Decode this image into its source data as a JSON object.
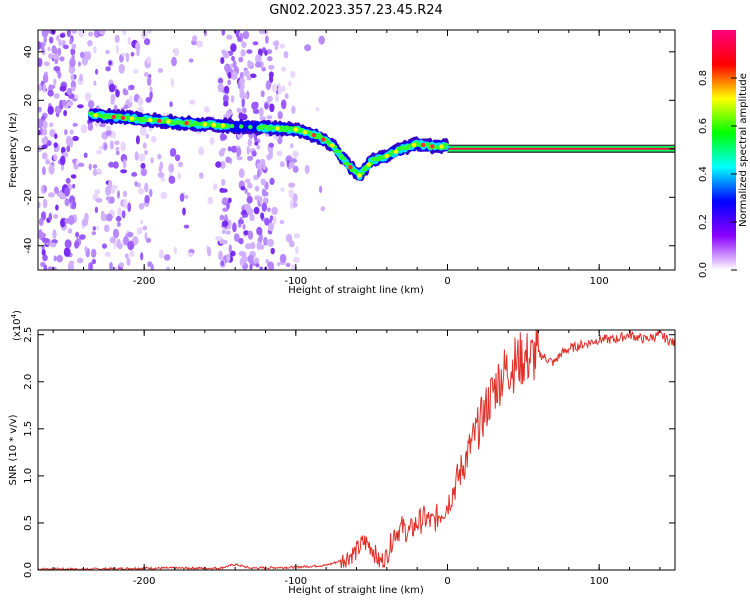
{
  "chart_data": [
    {
      "type": "heatmap",
      "title": "GN02.2023.357.23.45.R24",
      "xlabel": "Height of straight line (km)",
      "ylabel": "Frequency (Hz)",
      "xlim": [
        -270,
        150
      ],
      "ylim": [
        -50,
        49
      ],
      "xticks": [
        -200,
        -100,
        0,
        100
      ],
      "yticks": [
        -40,
        -20,
        0,
        20,
        40
      ],
      "colorbar": {
        "label": "Normalized spectral amplitude",
        "range": [
          0,
          1
        ],
        "ticks": [
          "0.0",
          "0.2",
          "0.4",
          "0.6",
          "0.8"
        ],
        "colors": [
          "#ffffff",
          "#8a00ff",
          "#0000ff",
          "#00ffff",
          "#00ff00",
          "#ffff00",
          "#ff0000",
          "#ff007f"
        ]
      },
      "ridge": {
        "x": [
          -235,
          -200,
          -160,
          -130,
          -100,
          -85,
          -75,
          -65,
          -58,
          -54,
          -50,
          -40,
          -30,
          -20,
          -10,
          0,
          150
        ],
        "y": [
          14,
          12,
          10,
          9,
          8,
          5,
          1,
          -7,
          -11,
          -8,
          -5,
          -3,
          0,
          2,
          1,
          1,
          0
        ]
      }
    },
    {
      "type": "line",
      "xlabel": "Height of straight line (km)",
      "ylabel": "SNR (10 * v/v)",
      "exponent_label": "(x10",
      "exponent": "4",
      "exponent_close": ")",
      "xlim": [
        -270,
        150
      ],
      "ylim": [
        0,
        2.55
      ],
      "xticks": [
        -200,
        -100,
        0,
        100
      ],
      "yticks": [
        "0.0",
        "0.5",
        "1.0",
        "1.5",
        "2.0",
        "2.5"
      ],
      "line_color": "#e0302a",
      "series": [
        {
          "x": [
            -270,
            -230,
            -200,
            -170,
            -150,
            -140,
            -130,
            -100,
            -80,
            -70,
            -60,
            -55,
            -50,
            -45,
            -40,
            -35,
            -30,
            -25,
            -20,
            -15,
            -10,
            -5,
            0,
            5,
            10,
            15,
            20,
            25,
            30,
            35,
            40,
            45,
            50,
            55,
            60,
            65,
            70,
            75,
            80,
            90,
            100,
            110,
            120,
            130,
            140,
            150
          ],
          "y": [
            0.01,
            0.01,
            0.02,
            0.02,
            0.02,
            0.06,
            0.02,
            0.03,
            0.05,
            0.1,
            0.2,
            0.3,
            0.25,
            0.08,
            0.15,
            0.4,
            0.45,
            0.4,
            0.5,
            0.55,
            0.5,
            0.6,
            0.7,
            0.9,
            1.1,
            1.3,
            1.5,
            1.7,
            1.9,
            2.05,
            2.15,
            2.2,
            2.25,
            2.25,
            2.3,
            2.25,
            2.2,
            2.3,
            2.35,
            2.4,
            2.45,
            2.45,
            2.5,
            2.45,
            2.5,
            2.4
          ]
        }
      ]
    }
  ]
}
